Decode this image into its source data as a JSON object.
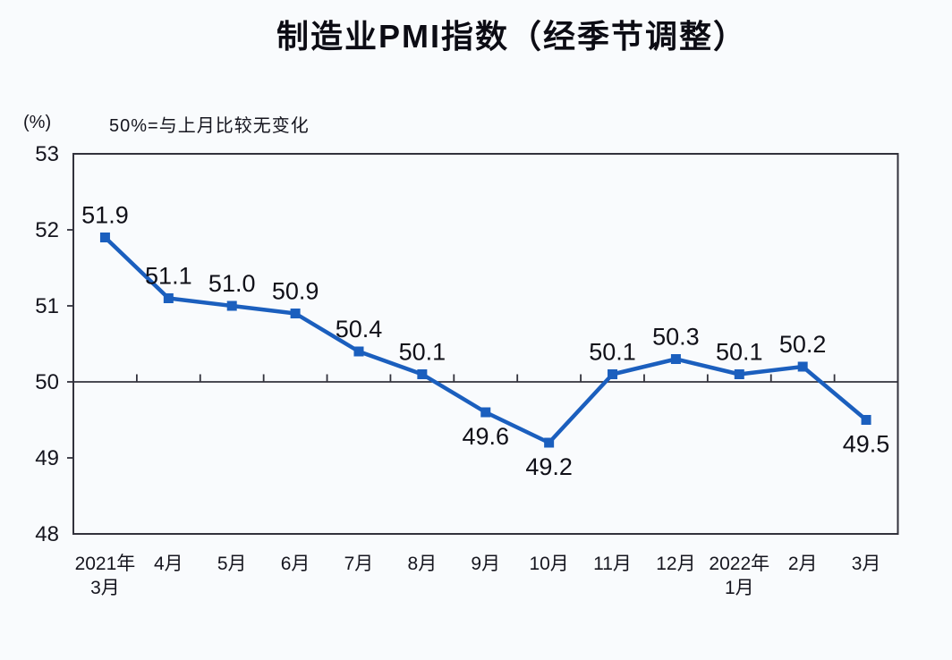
{
  "header": {
    "title": "制造业PMI指数（经季节调整）"
  },
  "axis_notes": {
    "unit": "(%)",
    "note": "50%=与上月比较无变化"
  },
  "colors": {
    "line": "#1b5fbe",
    "marker": "#1b5fbe",
    "axis": "#32323c",
    "tick_text": "#15151e",
    "data_label_text": "#101018",
    "background": "#f9fbfd"
  },
  "chart_data": {
    "type": "line",
    "title": "制造业PMI指数（经季节调整）",
    "note": "50%=与上月比较无变化",
    "unit": "(%)",
    "categories": [
      [
        "2021年",
        "3月"
      ],
      [
        "4月"
      ],
      [
        "5月"
      ],
      [
        "6月"
      ],
      [
        "7月"
      ],
      [
        "8月"
      ],
      [
        "9月"
      ],
      [
        "10月"
      ],
      [
        "11月"
      ],
      [
        "12月"
      ],
      [
        "2022年",
        "1月"
      ],
      [
        "2月"
      ],
      [
        "3月"
      ]
    ],
    "values": [
      51.9,
      51.1,
      51.0,
      50.9,
      50.4,
      50.1,
      49.6,
      49.2,
      50.1,
      50.3,
      50.1,
      50.2,
      49.5
    ],
    "data_labels": [
      "51.9",
      "51.1",
      "51.0",
      "50.9",
      "50.4",
      "50.1",
      "49.6",
      "49.2",
      "50.1",
      "50.3",
      "50.1",
      "50.2",
      "49.5"
    ],
    "label_positions": [
      "above",
      "above",
      "above",
      "above",
      "above",
      "above",
      "below",
      "below",
      "above",
      "above",
      "above",
      "above",
      "below"
    ],
    "ylim": [
      48,
      53
    ],
    "yticks": [
      48,
      49,
      50,
      51,
      52,
      53
    ],
    "reference_line": 50,
    "grid": false,
    "legend": "none",
    "xlabel": "",
    "ylabel": "(%)"
  }
}
